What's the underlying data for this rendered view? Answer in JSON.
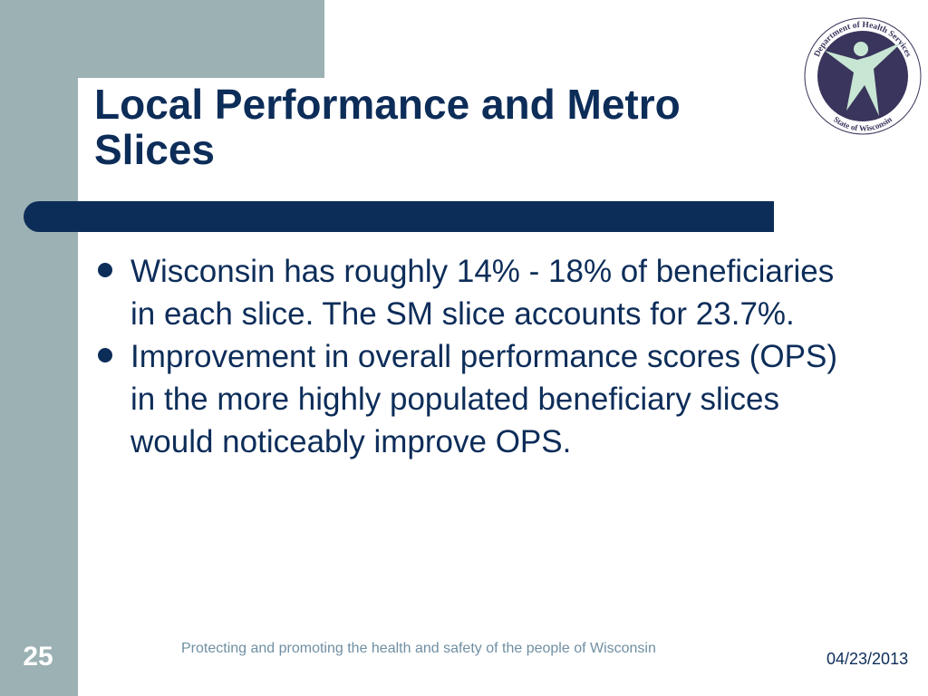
{
  "slide": {
    "title": "Local Performance and Metro Slices",
    "bullets": [
      "Wisconsin has roughly 14% - 18% of beneficiaries in each slice. The SM slice accounts for 23.7%.",
      "Improvement in overall performance scores (OPS) in the more highly populated beneficiary slices would noticeably improve OPS."
    ],
    "footer": "Protecting and promoting the health and safety of the people of Wisconsin",
    "slide_number": "25",
    "date": "04/23/2013"
  },
  "logo": {
    "top_text": "Department of Health Services",
    "bottom_text": "State of Wisconsin",
    "icon": "person-figure-icon"
  },
  "colors": {
    "navy": "#0d2d59",
    "sidebar": "#9bb1b3",
    "footer_text": "#6f8fa3",
    "logo_fill": "#3a355c",
    "figure": "#c8e6d4"
  }
}
